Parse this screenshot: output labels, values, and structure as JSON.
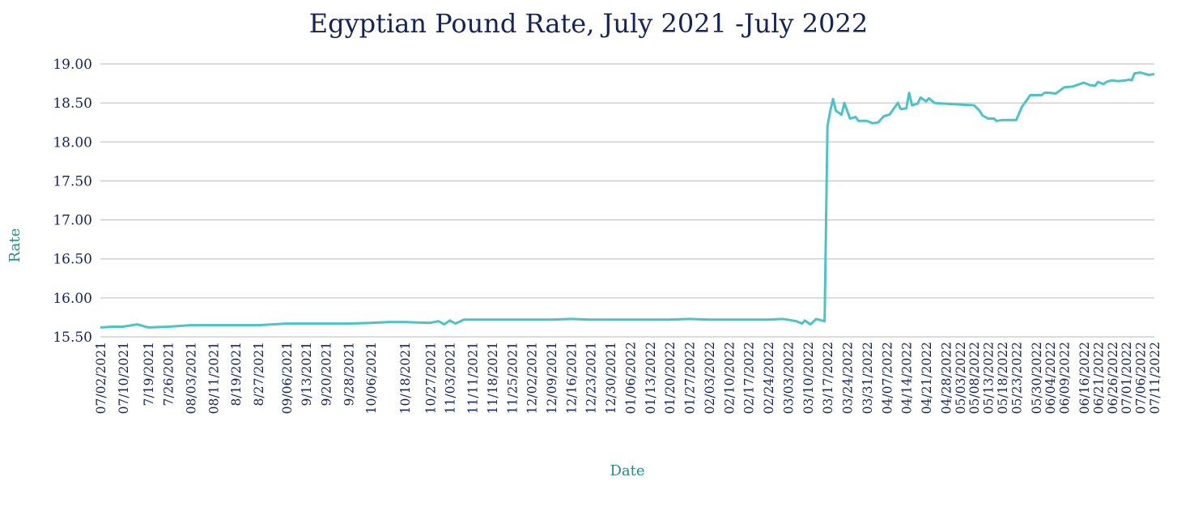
{
  "colors": {
    "title": "#142459",
    "tick_label": "#142459",
    "axis_title": "#1f8f8c",
    "line": "#4cc3c6",
    "grid": "#c8c8c8"
  },
  "chart_data": {
    "type": "line",
    "title": "Egyptian Pound Rate, July 2021 -July 2022",
    "xlabel": "Date",
    "ylabel": "Rate",
    "ylim": [
      15.5,
      19.0
    ],
    "grid": true,
    "legend": "none",
    "y_ticks": [
      "15.50",
      "16.00",
      "16.50",
      "17.00",
      "17.50",
      "18.00",
      "18.50",
      "19.00"
    ],
    "x_ticks": [
      {
        "label": "07/02/2021",
        "date": "2021-07-02"
      },
      {
        "label": "07/10/2021",
        "date": "2021-07-10"
      },
      {
        "label": "7/19/2021",
        "date": "2021-07-19"
      },
      {
        "label": "7/26/2021",
        "date": "2021-07-26"
      },
      {
        "label": "08/03/2021",
        "date": "2021-08-03"
      },
      {
        "label": "08/11/2021",
        "date": "2021-08-11"
      },
      {
        "label": "8/19/2021",
        "date": "2021-08-19"
      },
      {
        "label": "8/27/2021",
        "date": "2021-08-27"
      },
      {
        "label": "09/06/2021",
        "date": "2021-09-06"
      },
      {
        "label": "9/13/2021",
        "date": "2021-09-13"
      },
      {
        "label": "9/20/2021",
        "date": "2021-09-20"
      },
      {
        "label": "9/28/2021",
        "date": "2021-09-28"
      },
      {
        "label": "10/06/2021",
        "date": "2021-10-06"
      },
      {
        "label": "10/18/2021",
        "date": "2021-10-18"
      },
      {
        "label": "10/27/2021",
        "date": "2021-10-27"
      },
      {
        "label": "11/03/2021",
        "date": "2021-11-03"
      },
      {
        "label": "11/11/2021",
        "date": "2021-11-11"
      },
      {
        "label": "11/18/2021",
        "date": "2021-11-18"
      },
      {
        "label": "11/25/2021",
        "date": "2021-11-25"
      },
      {
        "label": "12/02/2021",
        "date": "2021-12-02"
      },
      {
        "label": "12/09/2021",
        "date": "2021-12-09"
      },
      {
        "label": "12/16/2021",
        "date": "2021-12-16"
      },
      {
        "label": "12/23/2021",
        "date": "2021-12-23"
      },
      {
        "label": "12/30/2021",
        "date": "2021-12-30"
      },
      {
        "label": "01/06/2022",
        "date": "2022-01-06"
      },
      {
        "label": "01/13/2022",
        "date": "2022-01-13"
      },
      {
        "label": "01/20/2022",
        "date": "2022-01-20"
      },
      {
        "label": "01/27/2022",
        "date": "2022-01-27"
      },
      {
        "label": "02/03/2022",
        "date": "2022-02-03"
      },
      {
        "label": "02/10/2022",
        "date": "2022-02-10"
      },
      {
        "label": "02/17/2022",
        "date": "2022-02-17"
      },
      {
        "label": "02/24/2022",
        "date": "2022-02-24"
      },
      {
        "label": "03/03/2022",
        "date": "2022-03-03"
      },
      {
        "label": "03/10/2022",
        "date": "2022-03-10"
      },
      {
        "label": "03/17/2022",
        "date": "2022-03-17"
      },
      {
        "label": "03/24/2022",
        "date": "2022-03-24"
      },
      {
        "label": "03/31/2022",
        "date": "2022-03-31"
      },
      {
        "label": "04/07/2022",
        "date": "2022-04-07"
      },
      {
        "label": "04/14/2022",
        "date": "2022-04-14"
      },
      {
        "label": "04/21/2022",
        "date": "2022-04-21"
      },
      {
        "label": "04/28/2022",
        "date": "2022-04-28"
      },
      {
        "label": "05/03/2022",
        "date": "2022-05-03"
      },
      {
        "label": "05/08/2022",
        "date": "2022-05-08"
      },
      {
        "label": "05/13/2022",
        "date": "2022-05-13"
      },
      {
        "label": "05/18/2022",
        "date": "2022-05-18"
      },
      {
        "label": "05/23/2022",
        "date": "2022-05-23"
      },
      {
        "label": "05/30/2022",
        "date": "2022-05-30"
      },
      {
        "label": "06/04/2022",
        "date": "2022-06-04"
      },
      {
        "label": "06/09/2022",
        "date": "2022-06-09"
      },
      {
        "label": "06/16/2022",
        "date": "2022-06-16"
      },
      {
        "label": "06/21/2022",
        "date": "2022-06-21"
      },
      {
        "label": "06/26/2022",
        "date": "2022-06-26"
      },
      {
        "label": "07/01/2022",
        "date": "2022-07-01"
      },
      {
        "label": "07/06/2022",
        "date": "2022-07-06"
      },
      {
        "label": "07/11/2022",
        "date": "2022-07-11"
      }
    ],
    "series": [
      {
        "points": [
          [
            "2021-07-02",
            15.62
          ],
          [
            "2021-07-06",
            15.63
          ],
          [
            "2021-07-10",
            15.63
          ],
          [
            "2021-07-15",
            15.66
          ],
          [
            "2021-07-19",
            15.62
          ],
          [
            "2021-07-26",
            15.63
          ],
          [
            "2021-08-03",
            15.65
          ],
          [
            "2021-08-11",
            15.65
          ],
          [
            "2021-08-19",
            15.65
          ],
          [
            "2021-08-27",
            15.65
          ],
          [
            "2021-09-06",
            15.67
          ],
          [
            "2021-09-13",
            15.67
          ],
          [
            "2021-09-20",
            15.67
          ],
          [
            "2021-09-28",
            15.67
          ],
          [
            "2021-10-06",
            15.68
          ],
          [
            "2021-10-12",
            15.69
          ],
          [
            "2021-10-18",
            15.69
          ],
          [
            "2021-10-27",
            15.68
          ],
          [
            "2021-10-30",
            15.7
          ],
          [
            "2021-11-01",
            15.66
          ],
          [
            "2021-11-03",
            15.71
          ],
          [
            "2021-11-05",
            15.67
          ],
          [
            "2021-11-08",
            15.72
          ],
          [
            "2021-11-11",
            15.72
          ],
          [
            "2021-11-18",
            15.72
          ],
          [
            "2021-11-25",
            15.72
          ],
          [
            "2021-12-02",
            15.72
          ],
          [
            "2021-12-09",
            15.72
          ],
          [
            "2021-12-16",
            15.73
          ],
          [
            "2021-12-23",
            15.72
          ],
          [
            "2021-12-30",
            15.72
          ],
          [
            "2022-01-06",
            15.72
          ],
          [
            "2022-01-13",
            15.72
          ],
          [
            "2022-01-20",
            15.72
          ],
          [
            "2022-01-27",
            15.73
          ],
          [
            "2022-02-03",
            15.72
          ],
          [
            "2022-02-10",
            15.72
          ],
          [
            "2022-02-17",
            15.72
          ],
          [
            "2022-02-24",
            15.72
          ],
          [
            "2022-03-01",
            15.73
          ],
          [
            "2022-03-03",
            15.72
          ],
          [
            "2022-03-06",
            15.7
          ],
          [
            "2022-03-08",
            15.67
          ],
          [
            "2022-03-09",
            15.71
          ],
          [
            "2022-03-11",
            15.66
          ],
          [
            "2022-03-13",
            15.73
          ],
          [
            "2022-03-16",
            15.7
          ],
          [
            "2022-03-17",
            18.2
          ],
          [
            "2022-03-18",
            18.4
          ],
          [
            "2022-03-19",
            18.55
          ],
          [
            "2022-03-20",
            18.4
          ],
          [
            "2022-03-22",
            18.35
          ],
          [
            "2022-03-23",
            18.5
          ],
          [
            "2022-03-25",
            18.3
          ],
          [
            "2022-03-27",
            18.32
          ],
          [
            "2022-03-28",
            18.27
          ],
          [
            "2022-03-31",
            18.27
          ],
          [
            "2022-04-02",
            18.24
          ],
          [
            "2022-04-04",
            18.25
          ],
          [
            "2022-04-06",
            18.33
          ],
          [
            "2022-04-08",
            18.35
          ],
          [
            "2022-04-10",
            18.45
          ],
          [
            "2022-04-11",
            18.5
          ],
          [
            "2022-04-12",
            18.42
          ],
          [
            "2022-04-14",
            18.43
          ],
          [
            "2022-04-15",
            18.63
          ],
          [
            "2022-04-16",
            18.47
          ],
          [
            "2022-04-18",
            18.49
          ],
          [
            "2022-04-19",
            18.57
          ],
          [
            "2022-04-21",
            18.52
          ],
          [
            "2022-04-22",
            18.56
          ],
          [
            "2022-04-24",
            18.5
          ],
          [
            "2022-04-28",
            18.49
          ],
          [
            "2022-05-03",
            18.48
          ],
          [
            "2022-05-08",
            18.47
          ],
          [
            "2022-05-10",
            18.4
          ],
          [
            "2022-05-11",
            18.34
          ],
          [
            "2022-05-13",
            18.3
          ],
          [
            "2022-05-15",
            18.3
          ],
          [
            "2022-05-16",
            18.27
          ],
          [
            "2022-05-18",
            18.28
          ],
          [
            "2022-05-23",
            18.28
          ],
          [
            "2022-05-25",
            18.45
          ],
          [
            "2022-05-28",
            18.6
          ],
          [
            "2022-05-30",
            18.6
          ],
          [
            "2022-06-01",
            18.6
          ],
          [
            "2022-06-02",
            18.63
          ],
          [
            "2022-06-04",
            18.63
          ],
          [
            "2022-06-06",
            18.62
          ],
          [
            "2022-06-09",
            18.7
          ],
          [
            "2022-06-12",
            18.71
          ],
          [
            "2022-06-16",
            18.76
          ],
          [
            "2022-06-18",
            18.73
          ],
          [
            "2022-06-20",
            18.72
          ],
          [
            "2022-06-21",
            18.77
          ],
          [
            "2022-06-23",
            18.74
          ],
          [
            "2022-06-24",
            18.77
          ],
          [
            "2022-06-26",
            18.79
          ],
          [
            "2022-06-28",
            18.78
          ],
          [
            "2022-07-01",
            18.79
          ],
          [
            "2022-07-02",
            18.8
          ],
          [
            "2022-07-03",
            18.79
          ],
          [
            "2022-07-04",
            18.88
          ],
          [
            "2022-07-06",
            18.89
          ],
          [
            "2022-07-08",
            18.87
          ],
          [
            "2022-07-09",
            18.86
          ],
          [
            "2022-07-11",
            18.87
          ]
        ]
      }
    ]
  }
}
